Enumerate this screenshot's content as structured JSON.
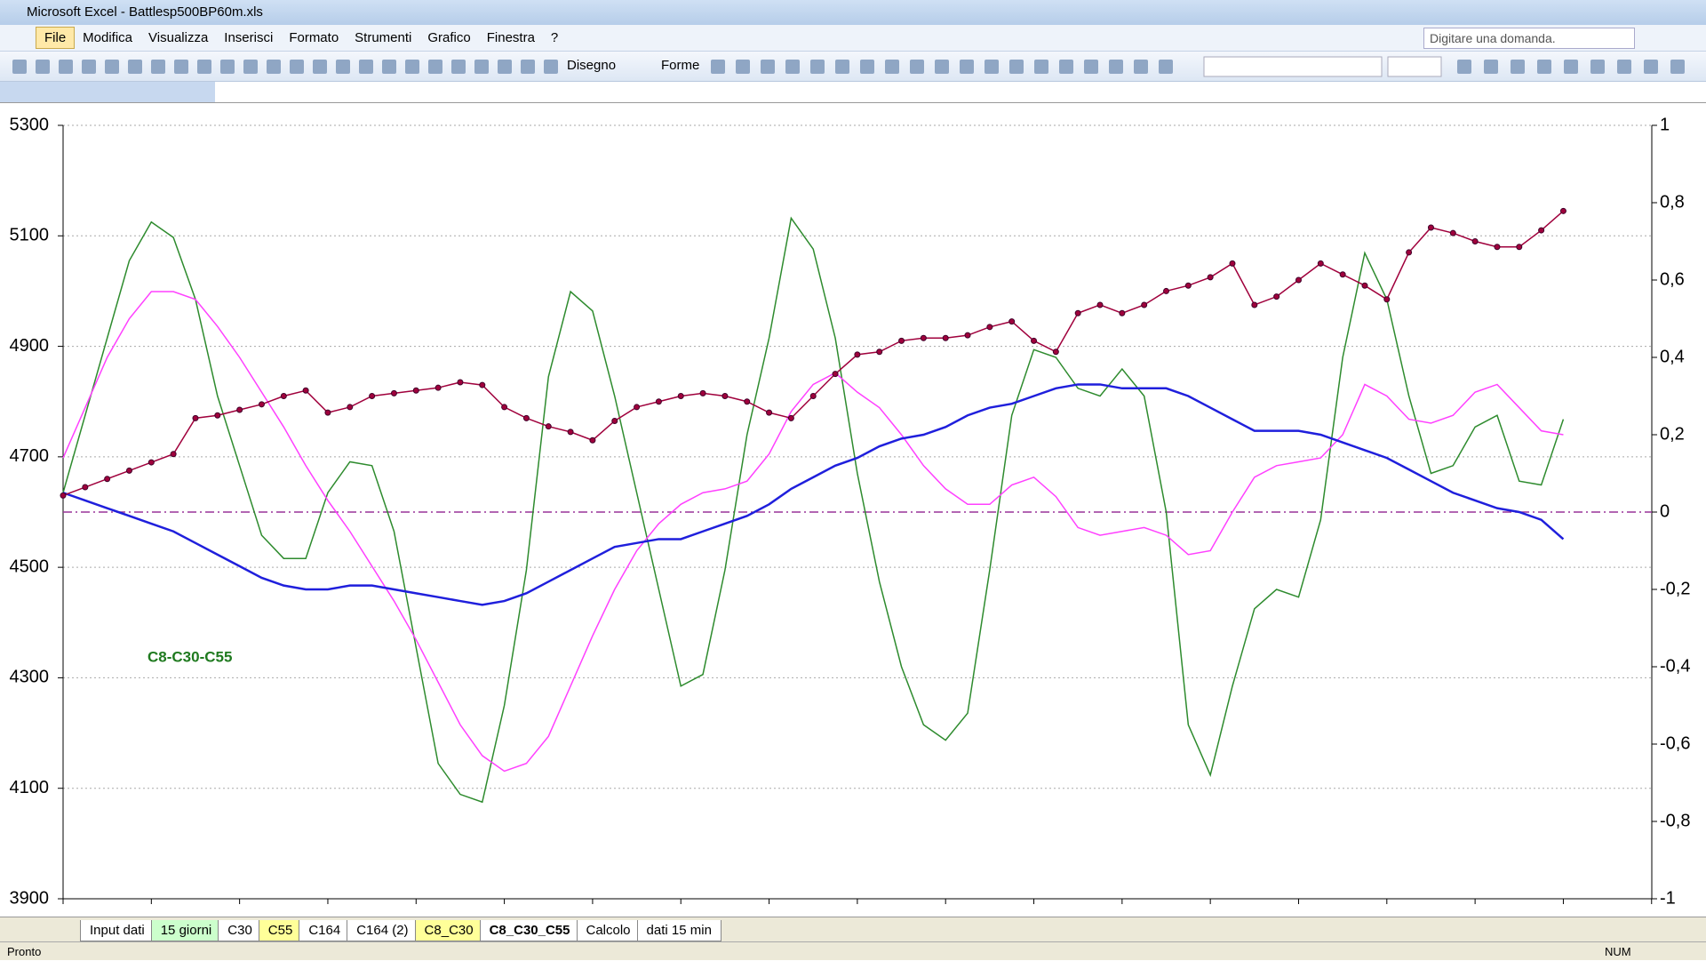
{
  "window": {
    "title": "Microsoft Excel - Battlesp500BP60m.xls"
  },
  "menu": [
    "File",
    "Modifica",
    "Visualizza",
    "Inserisci",
    "Formato",
    "Strumenti",
    "Grafico",
    "Finestra",
    "?"
  ],
  "help_box": "Digitare una domanda.",
  "toolbar": {
    "drawing": "Disegno",
    "shapes": "Forme"
  },
  "chart_data": {
    "type": "line",
    "annotations": [
      "C8-C30-C55"
    ],
    "categories": [
      null,
      null,
      null,
      null,
      null,
      null,
      null,
      null,
      null,
      null,
      null,
      null,
      null,
      null,
      null,
      null,
      null,
      null,
      null,
      null,
      null,
      null,
      null,
      null,
      null,
      null,
      null,
      null,
      null,
      null,
      null,
      null,
      null,
      null,
      null,
      null,
      null,
      null,
      null,
      null,
      null,
      null,
      null,
      null,
      null,
      null,
      null,
      null,
      null,
      null,
      null,
      null,
      null,
      null,
      null,
      null,
      null,
      null,
      null,
      null,
      null,
      null,
      null,
      null,
      null,
      null,
      null,
      null,
      null
    ],
    "ylim": [
      3900,
      5300
    ],
    "yticks": [
      3900,
      4100,
      4300,
      4500,
      4700,
      4900,
      5100,
      5300
    ],
    "y2lim": [
      -1,
      1
    ],
    "y2ticks": [
      -1,
      {
        "value": -0.8,
        "label": "-0,8"
      },
      {
        "value": -0.6,
        "label": "-0,6"
      },
      {
        "value": -0.4,
        "label": "-0,4"
      },
      {
        "value": -0.2,
        "label": "-0,2"
      },
      0,
      {
        "value": 0.2,
        "label": "0,2"
      },
      {
        "value": 0.4,
        "label": "0,4"
      },
      {
        "value": 0.6,
        "label": "0,6"
      },
      {
        "value": 0.8,
        "label": "0,8"
      },
      1
    ],
    "grid": true,
    "y2_reference_line": {
      "value": 0,
      "color": "#993399"
    },
    "series": [
      {
        "color": "#a0003c",
        "markers": true,
        "axis": "y",
        "values": [
          4630,
          4645,
          4660,
          4675,
          4690,
          4705,
          4770,
          4775,
          4785,
          4795,
          4810,
          4820,
          4780,
          4790,
          4810,
          4815,
          4820,
          4825,
          4835,
          4830,
          4790,
          4770,
          4755,
          4745,
          4730,
          4765,
          4790,
          4800,
          4810,
          4815,
          4810,
          4800,
          4780,
          4770,
          4810,
          4850,
          4885,
          4890,
          4910,
          4915,
          4915,
          4920,
          4935,
          4945,
          4910,
          4890,
          4960,
          4975,
          4960,
          4975,
          5000,
          5010,
          5025,
          5050,
          4975,
          4990,
          5020,
          5050,
          5030,
          5010,
          4985,
          5070,
          5115,
          5105,
          5090,
          5080,
          5080,
          5110,
          5145
        ]
      },
      {
        "color": "#1f1fdc",
        "axis": "y2",
        "values": [
          0.05,
          0.03,
          0.01,
          -0.01,
          -0.03,
          -0.05,
          -0.08,
          -0.11,
          -0.14,
          -0.17,
          -0.19,
          -0.2,
          -0.2,
          -0.19,
          -0.19,
          -0.2,
          -0.21,
          -0.22,
          -0.23,
          -0.24,
          -0.23,
          -0.21,
          -0.18,
          -0.15,
          -0.12,
          -0.09,
          -0.08,
          -0.07,
          -0.07,
          -0.05,
          -0.03,
          -0.01,
          0.02,
          0.06,
          0.09,
          0.12,
          0.14,
          0.17,
          0.19,
          0.2,
          0.22,
          0.25,
          0.27,
          0.28,
          0.3,
          0.32,
          0.33,
          0.33,
          0.32,
          0.32,
          0.32,
          0.3,
          0.27,
          0.24,
          0.21,
          0.21,
          0.21,
          0.2,
          0.18,
          0.16,
          0.14,
          0.11,
          0.08,
          0.05,
          0.03,
          0.01,
          0,
          -0.02,
          -0.07
        ]
      },
      {
        "color": "#ff40ff",
        "axis": "y2",
        "values": [
          0.14,
          0.27,
          0.4,
          0.5,
          0.57,
          0.57,
          0.55,
          0.48,
          0.4,
          0.31,
          0.22,
          0.12,
          0.03,
          -0.05,
          -0.14,
          -0.23,
          -0.33,
          -0.44,
          -0.55,
          -0.63,
          -0.67,
          -0.65,
          -0.58,
          -0.45,
          -0.32,
          -0.2,
          -0.1,
          -0.03,
          0.02,
          0.05,
          0.06,
          0.08,
          0.15,
          0.26,
          0.33,
          0.36,
          0.31,
          0.27,
          0.2,
          0.12,
          0.06,
          0.02,
          0.02,
          0.07,
          0.09,
          0.04,
          -0.04,
          -0.06,
          -0.05,
          -0.04,
          -0.06,
          -0.11,
          -0.1,
          0,
          0.09,
          0.12,
          0.13,
          0.14,
          0.2,
          0.33,
          0.3,
          0.24,
          0.23,
          0.25,
          0.31,
          0.33,
          0.27,
          0.21,
          0.2
        ]
      },
      {
        "color": "#2e8b2e",
        "axis": "y2",
        "values": [
          0.05,
          0.25,
          0.45,
          0.65,
          0.75,
          0.71,
          0.55,
          0.3,
          0.12,
          -0.06,
          -0.12,
          -0.12,
          0.05,
          0.13,
          0.12,
          -0.05,
          -0.35,
          -0.65,
          -0.73,
          -0.75,
          -0.5,
          -0.15,
          0.35,
          0.57,
          0.52,
          0.3,
          0.05,
          -0.2,
          -0.45,
          -0.42,
          -0.15,
          0.2,
          0.45,
          0.76,
          0.68,
          0.45,
          0.1,
          -0.18,
          -0.4,
          -0.55,
          -0.59,
          -0.52,
          -0.15,
          0.25,
          0.42,
          0.4,
          0.32,
          0.3,
          0.37,
          0.3,
          0,
          -0.55,
          -0.68,
          -0.45,
          -0.25,
          -0.2,
          -0.22,
          -0.02,
          0.4,
          0.67,
          0.55,
          0.3,
          0.1,
          0.12,
          0.22,
          0.25,
          0.08,
          0.07,
          0.24
        ]
      }
    ]
  },
  "sheet_tabs": [
    {
      "name": "Input dati",
      "color": "#ffffff"
    },
    {
      "name": "15 giorni",
      "color": "#ccffcc"
    },
    {
      "name": "C30",
      "color": "#ffffff"
    },
    {
      "name": "C55",
      "color": "#ffff99"
    },
    {
      "name": "C164",
      "color": "#ffffff"
    },
    {
      "name": "C164 (2)",
      "color": "#ffffff"
    },
    {
      "name": "C8_C30",
      "color": "#ffff99"
    },
    {
      "name": "C8_C30_C55",
      "color": "#ffffff",
      "active": true
    },
    {
      "name": "Calcolo",
      "color": "#ffffff"
    },
    {
      "name": "dati 15 min",
      "color": "#ffffff"
    }
  ],
  "status": {
    "ready": "Pronto",
    "num": "NUM"
  }
}
